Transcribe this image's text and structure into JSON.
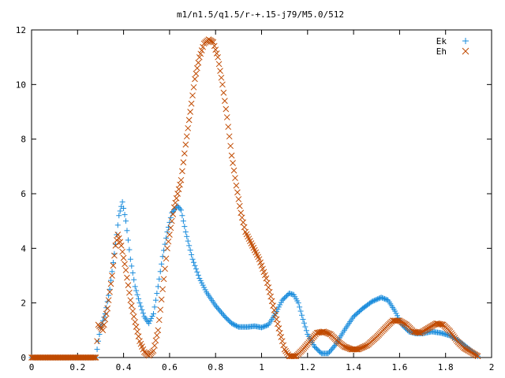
{
  "chart_data": {
    "type": "scatter",
    "title": "m1/n1.5/q1.5/r-+.15-j79/M5.0/512",
    "xlabel": "",
    "ylabel": "",
    "xlim": [
      0,
      2
    ],
    "ylim": [
      0,
      12
    ],
    "x_ticks": [
      0,
      0.2,
      0.4,
      0.6,
      0.8,
      1,
      1.2,
      1.4,
      1.6,
      1.8,
      2
    ],
    "x_tick_labels": [
      "0",
      "0.2",
      "0.4",
      "0.6",
      "0.8",
      "1",
      "1.2",
      "1.4",
      "1.6",
      "1.8",
      "2"
    ],
    "y_ticks": [
      0,
      2,
      4,
      6,
      8,
      10,
      12
    ],
    "y_tick_labels": [
      "0",
      "2",
      "4",
      "6",
      "8",
      "10",
      "12"
    ],
    "grid": false,
    "legend_position": "top-right",
    "x_step": 0.005,
    "x_start": 0,
    "x_end": 1.94,
    "series": [
      {
        "name": "Ek",
        "marker": "plus",
        "color": "#1a8cdc",
        "points": [
          [
            0.0,
            0.0
          ],
          [
            0.28,
            0.0
          ],
          [
            0.29,
            0.6
          ],
          [
            0.3,
            1.1
          ],
          [
            0.32,
            1.6
          ],
          [
            0.34,
            2.5
          ],
          [
            0.36,
            3.8
          ],
          [
            0.38,
            5.2
          ],
          [
            0.395,
            5.7
          ],
          [
            0.41,
            5.0
          ],
          [
            0.43,
            3.6
          ],
          [
            0.45,
            2.6
          ],
          [
            0.47,
            2.0
          ],
          [
            0.49,
            1.5
          ],
          [
            0.51,
            1.25
          ],
          [
            0.53,
            1.6
          ],
          [
            0.55,
            2.6
          ],
          [
            0.57,
            3.7
          ],
          [
            0.59,
            4.6
          ],
          [
            0.61,
            5.3
          ],
          [
            0.635,
            5.55
          ],
          [
            0.65,
            5.4
          ],
          [
            0.67,
            4.6
          ],
          [
            0.7,
            3.6
          ],
          [
            0.73,
            2.9
          ],
          [
            0.76,
            2.4
          ],
          [
            0.8,
            1.9
          ],
          [
            0.84,
            1.5
          ],
          [
            0.87,
            1.25
          ],
          [
            0.9,
            1.12
          ],
          [
            0.94,
            1.12
          ],
          [
            0.97,
            1.15
          ],
          [
            1.0,
            1.1
          ],
          [
            1.03,
            1.2
          ],
          [
            1.06,
            1.6
          ],
          [
            1.09,
            2.1
          ],
          [
            1.12,
            2.35
          ],
          [
            1.14,
            2.3
          ],
          [
            1.16,
            2.0
          ],
          [
            1.18,
            1.4
          ],
          [
            1.2,
            0.85
          ],
          [
            1.23,
            0.4
          ],
          [
            1.26,
            0.15
          ],
          [
            1.29,
            0.15
          ],
          [
            1.32,
            0.45
          ],
          [
            1.36,
            1.0
          ],
          [
            1.4,
            1.5
          ],
          [
            1.44,
            1.8
          ],
          [
            1.48,
            2.05
          ],
          [
            1.52,
            2.2
          ],
          [
            1.55,
            2.1
          ],
          [
            1.58,
            1.7
          ],
          [
            1.61,
            1.2
          ],
          [
            1.64,
            0.95
          ],
          [
            1.67,
            0.88
          ],
          [
            1.7,
            0.88
          ],
          [
            1.74,
            0.95
          ],
          [
            1.78,
            0.9
          ],
          [
            1.82,
            0.8
          ],
          [
            1.86,
            0.6
          ],
          [
            1.89,
            0.4
          ],
          [
            1.92,
            0.2
          ],
          [
            1.94,
            0.05
          ]
        ]
      },
      {
        "name": "Eh",
        "marker": "cross",
        "color": "#c04a00",
        "points": [
          [
            0.0,
            0.0
          ],
          [
            0.28,
            0.0
          ],
          [
            0.29,
            1.2
          ],
          [
            0.31,
            1.0
          ],
          [
            0.33,
            1.8
          ],
          [
            0.35,
            3.0
          ],
          [
            0.365,
            4.1
          ],
          [
            0.375,
            4.5
          ],
          [
            0.39,
            4.1
          ],
          [
            0.41,
            3.2
          ],
          [
            0.43,
            2.1
          ],
          [
            0.45,
            1.3
          ],
          [
            0.47,
            0.6
          ],
          [
            0.49,
            0.2
          ],
          [
            0.51,
            0.07
          ],
          [
            0.53,
            0.25
          ],
          [
            0.55,
            1.0
          ],
          [
            0.57,
            2.5
          ],
          [
            0.59,
            4.0
          ],
          [
            0.62,
            5.5
          ],
          [
            0.65,
            6.5
          ],
          [
            0.67,
            7.8
          ],
          [
            0.69,
            9.0
          ],
          [
            0.71,
            10.2
          ],
          [
            0.73,
            11.0
          ],
          [
            0.75,
            11.5
          ],
          [
            0.77,
            11.65
          ],
          [
            0.79,
            11.55
          ],
          [
            0.81,
            11.0
          ],
          [
            0.83,
            10.0
          ],
          [
            0.85,
            8.8
          ],
          [
            0.87,
            7.4
          ],
          [
            0.89,
            6.3
          ],
          [
            0.91,
            5.3
          ],
          [
            0.93,
            4.6
          ],
          [
            0.96,
            4.1
          ],
          [
            0.99,
            3.6
          ],
          [
            1.02,
            2.9
          ],
          [
            1.05,
            1.9
          ],
          [
            1.08,
            0.9
          ],
          [
            1.1,
            0.3
          ],
          [
            1.12,
            0.05
          ],
          [
            1.15,
            0.05
          ],
          [
            1.18,
            0.3
          ],
          [
            1.21,
            0.6
          ],
          [
            1.24,
            0.9
          ],
          [
            1.27,
            0.95
          ],
          [
            1.3,
            0.85
          ],
          [
            1.33,
            0.6
          ],
          [
            1.36,
            0.4
          ],
          [
            1.39,
            0.3
          ],
          [
            1.42,
            0.3
          ],
          [
            1.46,
            0.45
          ],
          [
            1.5,
            0.75
          ],
          [
            1.54,
            1.1
          ],
          [
            1.57,
            1.35
          ],
          [
            1.6,
            1.35
          ],
          [
            1.63,
            1.2
          ],
          [
            1.66,
            0.95
          ],
          [
            1.69,
            0.9
          ],
          [
            1.72,
            1.05
          ],
          [
            1.76,
            1.25
          ],
          [
            1.79,
            1.2
          ],
          [
            1.82,
            0.95
          ],
          [
            1.85,
            0.6
          ],
          [
            1.88,
            0.35
          ],
          [
            1.91,
            0.2
          ],
          [
            1.94,
            0.05
          ]
        ]
      }
    ]
  }
}
